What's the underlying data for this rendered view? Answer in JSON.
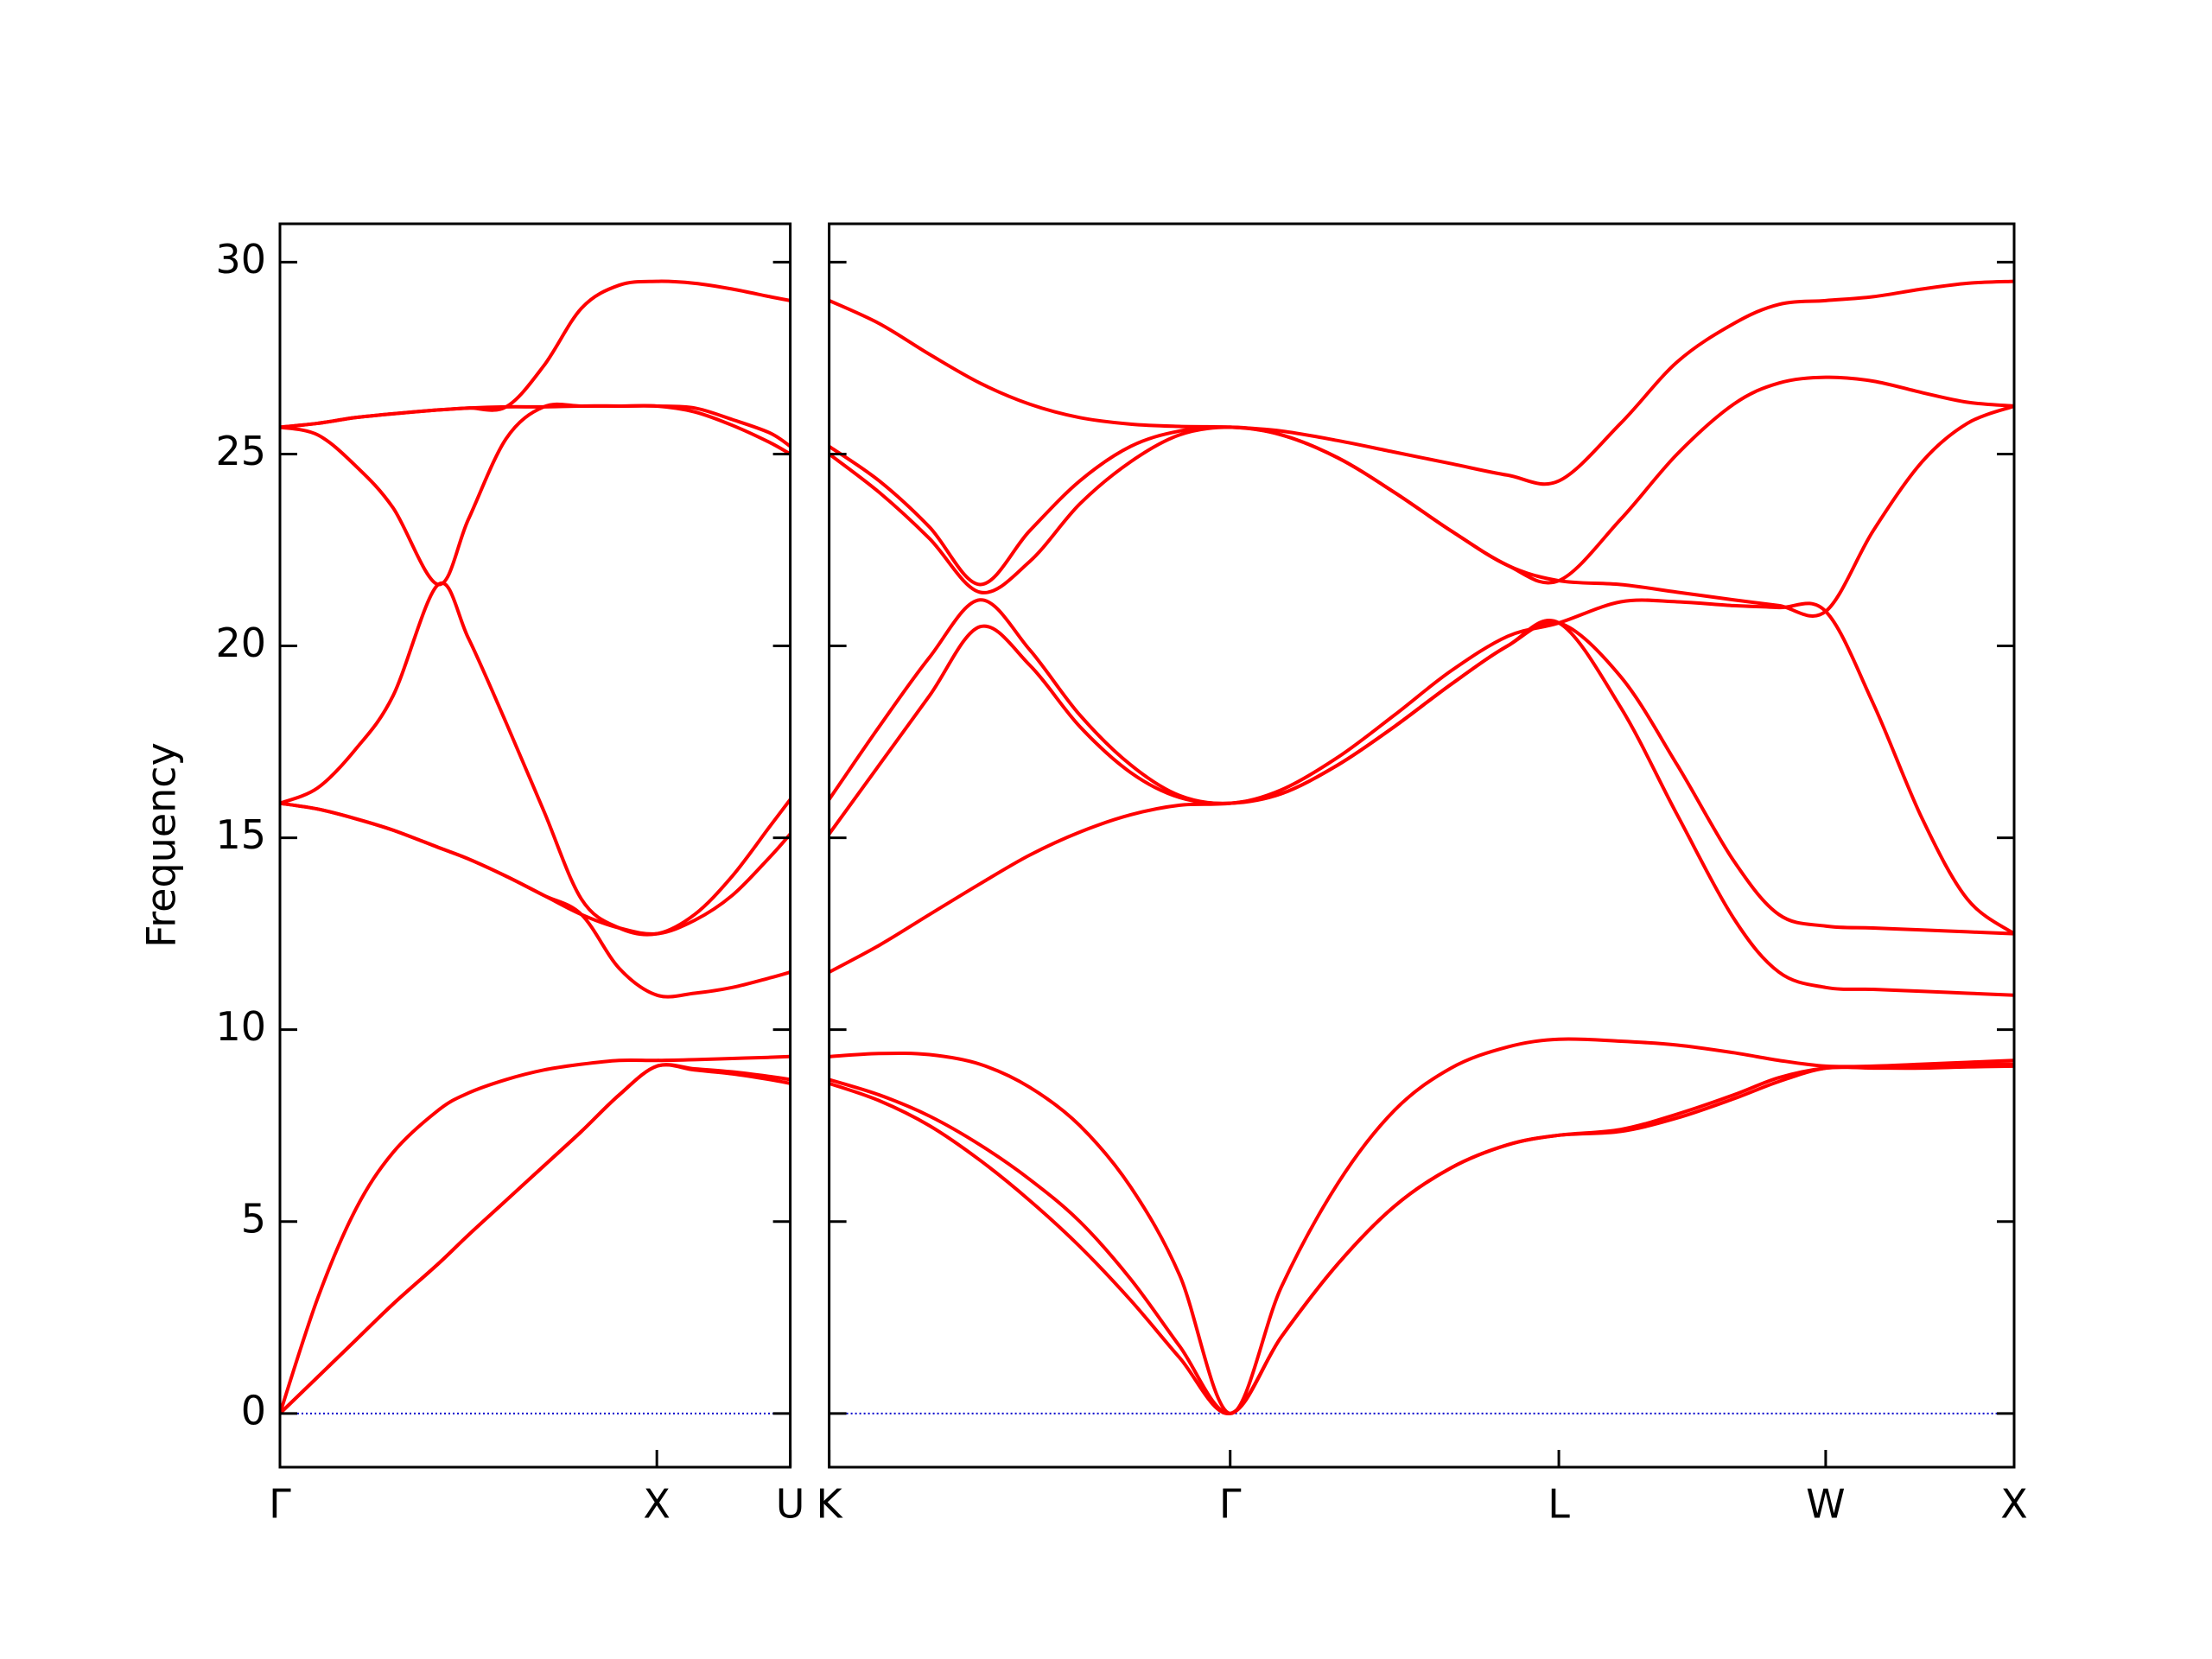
{
  "chart_data": [
    {
      "type": "line",
      "ylabel": "Frequency",
      "color": "#ff0000",
      "zero_line_color": "#0000cc",
      "xlim": [
        0,
        1.354
      ],
      "xticks": [
        {
          "value": 0,
          "label": "Γ"
        },
        {
          "value": 1.0,
          "label": "X"
        },
        {
          "value": 1.354,
          "label": "U"
        }
      ],
      "ylim": [
        -1.4,
        31
      ],
      "yticks": [
        0,
        5,
        10,
        15,
        20,
        25,
        30
      ],
      "x": [
        0,
        0.1,
        0.2,
        0.3,
        0.42,
        0.5,
        0.6,
        0.7,
        0.8,
        0.9,
        1.0,
        1.1,
        1.2,
        1.3,
        1.354
      ],
      "series": [
        {
          "values": [
            0,
            0.95,
            1.9,
            2.85,
            3.9,
            4.65,
            5.55,
            6.45,
            7.35,
            8.3,
            9.05,
            8.95,
            8.85,
            8.7,
            8.6
          ]
        },
        {
          "values": [
            0,
            0.95,
            1.9,
            2.85,
            3.9,
            4.65,
            5.55,
            6.45,
            7.35,
            8.3,
            9.05,
            8.98,
            8.9,
            8.78,
            8.7
          ]
        },
        {
          "values": [
            0,
            3.0,
            5.3,
            6.8,
            7.9,
            8.35,
            8.7,
            8.95,
            9.1,
            9.2,
            9.2,
            9.22,
            9.25,
            9.28,
            9.3
          ]
        },
        {
          "values": [
            15.9,
            15.75,
            15.5,
            15.2,
            14.75,
            14.45,
            14.0,
            13.5,
            13.0,
            11.6,
            10.9,
            10.95,
            11.1,
            11.35,
            11.5
          ]
        },
        {
          "values": [
            15.9,
            15.75,
            15.5,
            15.2,
            14.75,
            14.45,
            14.0,
            13.5,
            13.0,
            12.65,
            12.5,
            12.85,
            13.5,
            14.5,
            15.1
          ]
        },
        {
          "values": [
            15.9,
            16.3,
            17.3,
            18.7,
            21.6,
            20.2,
            18.0,
            15.7,
            13.4,
            12.65,
            12.5,
            13.0,
            14.0,
            15.3,
            16.0
          ]
        },
        {
          "values": [
            25.7,
            25.5,
            24.7,
            23.6,
            21.6,
            23.3,
            25.4,
            26.23,
            26.25,
            26.25,
            26.25,
            26.1,
            25.75,
            25.3,
            25.0
          ]
        },
        {
          "values": [
            25.7,
            25.8,
            25.95,
            26.05,
            26.15,
            26.2,
            26.23,
            26.23,
            26.25,
            26.25,
            26.25,
            26.2,
            25.9,
            25.55,
            25.2
          ]
        },
        {
          "values": [
            25.7,
            25.8,
            25.95,
            26.05,
            26.15,
            26.2,
            26.23,
            27.3,
            28.8,
            29.4,
            29.5,
            29.45,
            29.3,
            29.1,
            29.0
          ]
        }
      ]
    },
    {
      "type": "line",
      "color": "#ff0000",
      "zero_line_color": "#0000cc",
      "xlim": [
        0,
        3.144
      ],
      "xticks": [
        {
          "value": 0,
          "label": "K"
        },
        {
          "value": 1.064,
          "label": "Γ"
        },
        {
          "value": 1.936,
          "label": "L"
        },
        {
          "value": 2.644,
          "label": "W"
        },
        {
          "value": 3.144,
          "label": "X"
        }
      ],
      "ylim": [
        -1.4,
        31
      ],
      "x": [
        0,
        0.133,
        0.266,
        0.4,
        0.532,
        0.665,
        0.8,
        0.93,
        1.064,
        1.2,
        1.35,
        1.5,
        1.65,
        1.8,
        1.936,
        2.1,
        2.25,
        2.4,
        2.52,
        2.644,
        2.77,
        2.9,
        3.02,
        3.144
      ],
      "series": [
        {
          "values": [
            8.6,
            8.15,
            7.5,
            6.6,
            5.55,
            4.35,
            2.95,
            1.45,
            0,
            2.0,
            3.9,
            5.4,
            6.4,
            7.0,
            7.25,
            7.35,
            7.7,
            8.2,
            8.65,
            9.0,
            9.0,
            9.0,
            9.03,
            9.05
          ]
        },
        {
          "values": [
            8.7,
            8.3,
            7.75,
            7.0,
            6.1,
            5.0,
            3.5,
            1.75,
            0,
            2.0,
            3.9,
            5.4,
            6.4,
            7.0,
            7.25,
            7.4,
            7.8,
            8.3,
            8.75,
            9.0,
            9.02,
            9.05,
            9.1,
            9.1
          ]
        },
        {
          "values": [
            9.3,
            9.38,
            9.35,
            9.1,
            8.5,
            7.5,
            5.9,
            3.6,
            0,
            3.3,
            6.0,
            7.9,
            9.0,
            9.55,
            9.75,
            9.7,
            9.6,
            9.4,
            9.2,
            9.05,
            9.05,
            9.1,
            9.15,
            9.2
          ]
        },
        {
          "values": [
            11.5,
            12.2,
            13.0,
            13.8,
            14.55,
            15.15,
            15.6,
            15.85,
            15.9,
            16.15,
            16.9,
            17.9,
            19.0,
            20.0,
            20.6,
            18.4,
            15.6,
            12.9,
            11.5,
            11.1,
            11.05,
            11.0,
            10.95,
            10.9
          ]
        },
        {
          "values": [
            15.1,
            16.9,
            18.7,
            20.5,
            19.5,
            17.9,
            16.7,
            16.05,
            15.9,
            16.15,
            16.9,
            17.9,
            19.0,
            20.0,
            20.6,
            19.2,
            16.9,
            14.4,
            13.0,
            12.7,
            12.65,
            12.6,
            12.55,
            12.5
          ]
        },
        {
          "values": [
            16.0,
            17.9,
            19.7,
            21.2,
            19.9,
            18.2,
            16.9,
            16.1,
            15.9,
            16.25,
            17.1,
            18.2,
            19.35,
            20.25,
            20.6,
            21.15,
            21.15,
            21.05,
            21.0,
            20.9,
            18.5,
            15.5,
            13.4,
            12.5
          ]
        },
        {
          "values": [
            25.0,
            24.0,
            22.8,
            21.4,
            22.2,
            23.7,
            24.8,
            25.5,
            25.7,
            25.5,
            24.9,
            24.0,
            23.0,
            22.1,
            21.7,
            21.6,
            21.4,
            21.2,
            21.05,
            20.9,
            23.0,
            24.8,
            25.8,
            26.25
          ]
        },
        {
          "values": [
            25.2,
            24.3,
            23.1,
            21.6,
            23.0,
            24.3,
            25.2,
            25.6,
            25.7,
            25.5,
            24.9,
            24.0,
            23.0,
            22.1,
            21.7,
            23.3,
            25.0,
            26.3,
            26.85,
            27.0,
            26.9,
            26.6,
            26.35,
            26.25
          ]
        },
        {
          "values": [
            29.0,
            28.4,
            27.6,
            26.85,
            26.3,
            25.95,
            25.78,
            25.72,
            25.7,
            25.6,
            25.35,
            25.05,
            24.75,
            24.45,
            24.3,
            25.8,
            27.4,
            28.4,
            28.9,
            29.0,
            29.1,
            29.3,
            29.45,
            29.5
          ]
        }
      ]
    }
  ]
}
